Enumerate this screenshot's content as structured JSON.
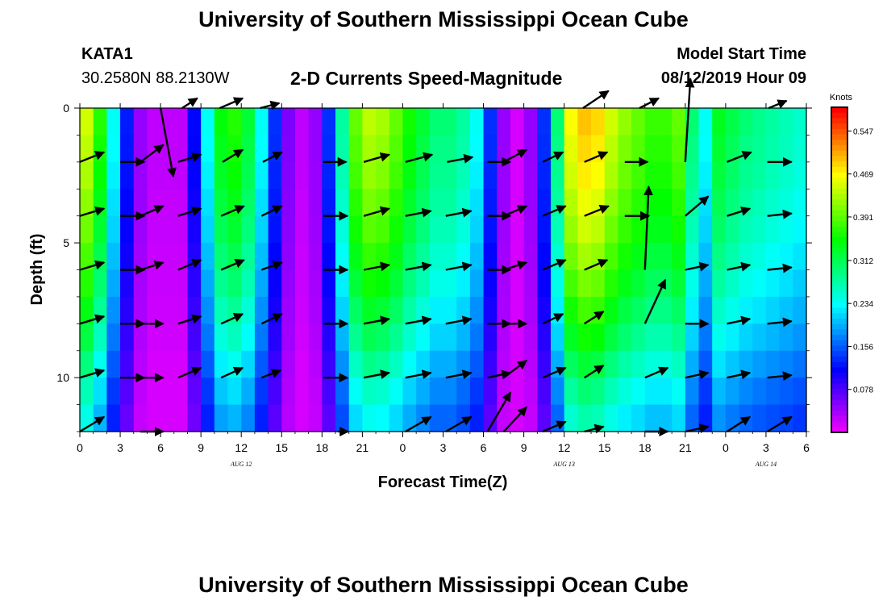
{
  "header": {
    "title": "University of Southern Mississippi Ocean Cube",
    "station": "KATA1",
    "coords": "30.2580N 88.2130W",
    "plot_title": "2-D Currents Speed-Magnitude",
    "model_label": "Model Start Time",
    "model_time": "08/12/2019 Hour 09",
    "footer_title": "University of Southern Mississippi Ocean Cube"
  },
  "chart_data": {
    "type": "heatmap",
    "title": "2-D Currents Speed-Magnitude",
    "xlabel": "Forecast Time(Z)",
    "ylabel": "Depth (ft)",
    "colorbar_label": "Knots",
    "xlim": [
      0,
      54
    ],
    "ylim": [
      12,
      0
    ],
    "x_tick_values": [
      0,
      3,
      6,
      9,
      12,
      15,
      18,
      21,
      24,
      27,
      30,
      33,
      36,
      39,
      42,
      45,
      48,
      51,
      54
    ],
    "x_tick_labels": [
      "0",
      "3",
      "6",
      "9",
      "12",
      "15",
      "18",
      "21",
      "0",
      "3",
      "6",
      "9",
      "12",
      "15",
      "18",
      "21",
      "0",
      "3",
      "6"
    ],
    "date_labels": [
      {
        "text": "AUG 12",
        "x": 12
      },
      {
        "text": "AUG 13",
        "x": 36
      },
      {
        "text": "AUG 14",
        "x": 51
      }
    ],
    "y_tick_values": [
      0,
      5,
      10
    ],
    "y_tick_labels": [
      "0",
      "5",
      "10"
    ],
    "colorbar_ticks": [
      0.078,
      0.156,
      0.234,
      0.312,
      0.391,
      0.469,
      0.547
    ],
    "colorbar_range": [
      0,
      0.59
    ],
    "hours": [
      0,
      1,
      2,
      3,
      4,
      5,
      6,
      7,
      8,
      9,
      10,
      11,
      12,
      13,
      14,
      15,
      16,
      17,
      18,
      19,
      20,
      21,
      22,
      23,
      24,
      25,
      26,
      27,
      28,
      29,
      30,
      31,
      32,
      33,
      34,
      35,
      36,
      37,
      38,
      39,
      40,
      41,
      42,
      43,
      44,
      45,
      46,
      47,
      48,
      49,
      50,
      51,
      52,
      53
    ],
    "depths": [
      0,
      1,
      2,
      3,
      4,
      5,
      6,
      7,
      8,
      9,
      10,
      11
    ],
    "speed_profile": [
      0.45,
      0.37,
      0.24,
      0.13,
      0.05,
      0.03,
      0.03,
      0.03,
      0.12,
      0.24,
      0.35,
      0.37,
      0.33,
      0.24,
      0.14,
      0.06,
      0.03,
      0.05,
      0.14,
      0.28,
      0.4,
      0.44,
      0.43,
      0.4,
      0.36,
      0.33,
      0.3,
      0.3,
      0.28,
      0.24,
      0.14,
      0.05,
      0.02,
      0.05,
      0.14,
      0.3,
      0.47,
      0.5,
      0.49,
      0.45,
      0.42,
      0.4,
      0.38,
      0.38,
      0.4,
      0.3,
      0.24,
      0.34,
      0.32,
      0.3,
      0.29,
      0.28,
      0.27,
      0.26
    ],
    "depth_attenuation": [
      1.0,
      0.98,
      0.96,
      0.93,
      0.9,
      0.86,
      0.82,
      0.77,
      0.72,
      0.66,
      0.6,
      0.55
    ],
    "vector_rows": [
      {
        "depth": 0,
        "vectors": [
          {
            "x": 6,
            "dx": 1.0,
            "dy": 1.4
          },
          {
            "x": 7.6,
            "dx": 1.2,
            "dy": -0.2
          },
          {
            "x": 10.4,
            "dx": 1.8,
            "dy": -0.2
          },
          {
            "x": 13.4,
            "dx": 1.5,
            "dy": -0.1
          },
          {
            "x": 37.4,
            "dx": 2.0,
            "dy": -0.35
          },
          {
            "x": 41.6,
            "dx": 1.5,
            "dy": -0.2
          },
          {
            "x": 51.2,
            "dx": 1.4,
            "dy": -0.15
          }
        ]
      },
      {
        "depth": 2,
        "vectors": [
          {
            "x": 0,
            "dx": 1.9,
            "dy": -0.2
          },
          {
            "x": 3,
            "dx": 1.9,
            "dy": 0
          },
          {
            "x": 4.5,
            "dx": 1.8,
            "dy": -0.35
          },
          {
            "x": 7.3,
            "dx": 1.8,
            "dy": -0.15
          },
          {
            "x": 10.6,
            "dx": 1.6,
            "dy": -0.25
          },
          {
            "x": 13.6,
            "dx": 1.5,
            "dy": -0.2
          },
          {
            "x": 18.1,
            "dx": 1.8,
            "dy": 0
          },
          {
            "x": 21.1,
            "dx": 2.0,
            "dy": -0.15
          },
          {
            "x": 24.2,
            "dx": 2.1,
            "dy": -0.15
          },
          {
            "x": 27.3,
            "dx": 2.0,
            "dy": -0.1
          },
          {
            "x": 30.3,
            "dx": 1.8,
            "dy": 0
          },
          {
            "x": 31.5,
            "dx": 1.8,
            "dy": -0.25
          },
          {
            "x": 34.4,
            "dx": 1.6,
            "dy": -0.2
          },
          {
            "x": 37.5,
            "dx": 1.8,
            "dy": -0.2
          },
          {
            "x": 40.5,
            "dx": 1.8,
            "dy": 0
          },
          {
            "x": 45,
            "dx": 0.4,
            "dy": -1.7
          },
          {
            "x": 48.1,
            "dx": 1.9,
            "dy": -0.2
          },
          {
            "x": 51.1,
            "dx": 1.9,
            "dy": 0
          }
        ]
      },
      {
        "depth": 4,
        "vectors": [
          {
            "x": 0,
            "dx": 1.9,
            "dy": -0.15
          },
          {
            "x": 3,
            "dx": 1.9,
            "dy": 0
          },
          {
            "x": 4.5,
            "dx": 1.8,
            "dy": -0.2
          },
          {
            "x": 7.3,
            "dx": 1.8,
            "dy": -0.15
          },
          {
            "x": 10.5,
            "dx": 1.8,
            "dy": -0.2
          },
          {
            "x": 13.5,
            "dx": 1.6,
            "dy": -0.2
          },
          {
            "x": 18.1,
            "dx": 1.9,
            "dy": 0
          },
          {
            "x": 21.1,
            "dx": 2.0,
            "dy": -0.15
          },
          {
            "x": 24.2,
            "dx": 2.0,
            "dy": -0.1
          },
          {
            "x": 27.2,
            "dx": 2.0,
            "dy": -0.1
          },
          {
            "x": 30.3,
            "dx": 1.8,
            "dy": 0
          },
          {
            "x": 31.5,
            "dx": 1.8,
            "dy": -0.2
          },
          {
            "x": 34.4,
            "dx": 1.8,
            "dy": -0.2
          },
          {
            "x": 37.5,
            "dx": 1.9,
            "dy": -0.2
          },
          {
            "x": 40.5,
            "dx": 1.9,
            "dy": 0
          },
          {
            "x": 45,
            "dx": 1.8,
            "dy": -0.4
          },
          {
            "x": 48.1,
            "dx": 1.8,
            "dy": -0.15
          },
          {
            "x": 51.1,
            "dx": 1.9,
            "dy": -0.05
          }
        ]
      },
      {
        "depth": 6,
        "vectors": [
          {
            "x": 0,
            "dx": 1.9,
            "dy": -0.15
          },
          {
            "x": 3,
            "dx": 1.9,
            "dy": 0
          },
          {
            "x": 4.5,
            "dx": 1.8,
            "dy": -0.15
          },
          {
            "x": 7.3,
            "dx": 1.8,
            "dy": -0.2
          },
          {
            "x": 10.5,
            "dx": 1.8,
            "dy": -0.2
          },
          {
            "x": 13.5,
            "dx": 1.6,
            "dy": -0.15
          },
          {
            "x": 18.1,
            "dx": 1.9,
            "dy": 0
          },
          {
            "x": 21.1,
            "dx": 2.0,
            "dy": -0.1
          },
          {
            "x": 24.2,
            "dx": 2.0,
            "dy": -0.1
          },
          {
            "x": 27.2,
            "dx": 2.0,
            "dy": -0.1
          },
          {
            "x": 30.3,
            "dx": 1.8,
            "dy": 0
          },
          {
            "x": 31.5,
            "dx": 1.8,
            "dy": -0.15
          },
          {
            "x": 34.4,
            "dx": 1.8,
            "dy": -0.2
          },
          {
            "x": 37.5,
            "dx": 1.8,
            "dy": -0.2
          },
          {
            "x": 42,
            "dx": 0.3,
            "dy": -1.7
          },
          {
            "x": 45,
            "dx": 1.8,
            "dy": -0.1
          },
          {
            "x": 48.1,
            "dx": 1.8,
            "dy": -0.1
          },
          {
            "x": 51.1,
            "dx": 1.9,
            "dy": -0.05
          }
        ]
      },
      {
        "depth": 8,
        "vectors": [
          {
            "x": 0,
            "dx": 1.9,
            "dy": -0.15
          },
          {
            "x": 3,
            "dx": 1.9,
            "dy": 0
          },
          {
            "x": 4.5,
            "dx": 1.8,
            "dy": 0
          },
          {
            "x": 7.3,
            "dx": 1.8,
            "dy": -0.15
          },
          {
            "x": 10.5,
            "dx": 1.7,
            "dy": -0.2
          },
          {
            "x": 13.5,
            "dx": 1.6,
            "dy": -0.2
          },
          {
            "x": 18.1,
            "dx": 1.9,
            "dy": 0
          },
          {
            "x": 21.1,
            "dx": 2.0,
            "dy": -0.1
          },
          {
            "x": 24.2,
            "dx": 2.0,
            "dy": -0.1
          },
          {
            "x": 27.2,
            "dx": 2.0,
            "dy": -0.1
          },
          {
            "x": 30.3,
            "dx": 1.8,
            "dy": 0
          },
          {
            "x": 31.5,
            "dx": 1.8,
            "dy": 0
          },
          {
            "x": 34.4,
            "dx": 1.6,
            "dy": -0.2
          },
          {
            "x": 37.5,
            "dx": 1.5,
            "dy": -0.25
          },
          {
            "x": 42,
            "dx": 1.6,
            "dy": -0.9
          },
          {
            "x": 45,
            "dx": 1.8,
            "dy": 0
          },
          {
            "x": 48.1,
            "dx": 1.8,
            "dy": -0.1
          },
          {
            "x": 51.1,
            "dx": 1.9,
            "dy": -0.05
          }
        ]
      },
      {
        "depth": 10,
        "vectors": [
          {
            "x": 0,
            "dx": 1.9,
            "dy": -0.15
          },
          {
            "x": 3,
            "dx": 1.9,
            "dy": 0
          },
          {
            "x": 4.5,
            "dx": 1.8,
            "dy": 0
          },
          {
            "x": 7.3,
            "dx": 1.8,
            "dy": -0.2
          },
          {
            "x": 10.5,
            "dx": 1.7,
            "dy": -0.2
          },
          {
            "x": 13.5,
            "dx": 1.5,
            "dy": -0.15
          },
          {
            "x": 18.1,
            "dx": 1.9,
            "dy": 0
          },
          {
            "x": 21.1,
            "dx": 2.0,
            "dy": -0.1
          },
          {
            "x": 24.2,
            "dx": 2.0,
            "dy": -0.1
          },
          {
            "x": 27.2,
            "dx": 2.0,
            "dy": -0.1
          },
          {
            "x": 30.3,
            "dx": 1.8,
            "dy": -0.1
          },
          {
            "x": 31.5,
            "dx": 1.8,
            "dy": -0.35
          },
          {
            "x": 34.4,
            "dx": 1.8,
            "dy": -0.2
          },
          {
            "x": 37.5,
            "dx": 1.5,
            "dy": -0.25
          },
          {
            "x": 42,
            "dx": 1.8,
            "dy": -0.2
          },
          {
            "x": 45,
            "dx": 1.8,
            "dy": -0.1
          },
          {
            "x": 48.1,
            "dx": 1.8,
            "dy": -0.1
          },
          {
            "x": 51.1,
            "dx": 1.9,
            "dy": -0.05
          }
        ]
      },
      {
        "depth": 12,
        "vectors": [
          {
            "x": 0,
            "dx": 1.9,
            "dy": -0.3
          },
          {
            "x": 4.5,
            "dx": 1.8,
            "dy": 0
          },
          {
            "x": 19.2,
            "dx": 0.8,
            "dy": 0
          },
          {
            "x": 24.2,
            "dx": 2.0,
            "dy": -0.3
          },
          {
            "x": 27.2,
            "dx": 2.0,
            "dy": -0.3
          },
          {
            "x": 30.3,
            "dx": 1.8,
            "dy": -0.8
          },
          {
            "x": 31.5,
            "dx": 1.8,
            "dy": -0.5
          },
          {
            "x": 34.4,
            "dx": 1.8,
            "dy": -0.2
          },
          {
            "x": 37.5,
            "dx": 1.5,
            "dy": -0.1
          },
          {
            "x": 42,
            "dx": 1.8,
            "dy": 0
          },
          {
            "x": 45,
            "dx": 1.8,
            "dy": -0.1
          },
          {
            "x": 48.1,
            "dx": 1.8,
            "dy": -0.3
          },
          {
            "x": 51.1,
            "dx": 1.9,
            "dy": -0.3
          }
        ]
      }
    ]
  },
  "colors": {
    "vector": "#000000",
    "axis": "#000000",
    "background": "#ffffff"
  }
}
